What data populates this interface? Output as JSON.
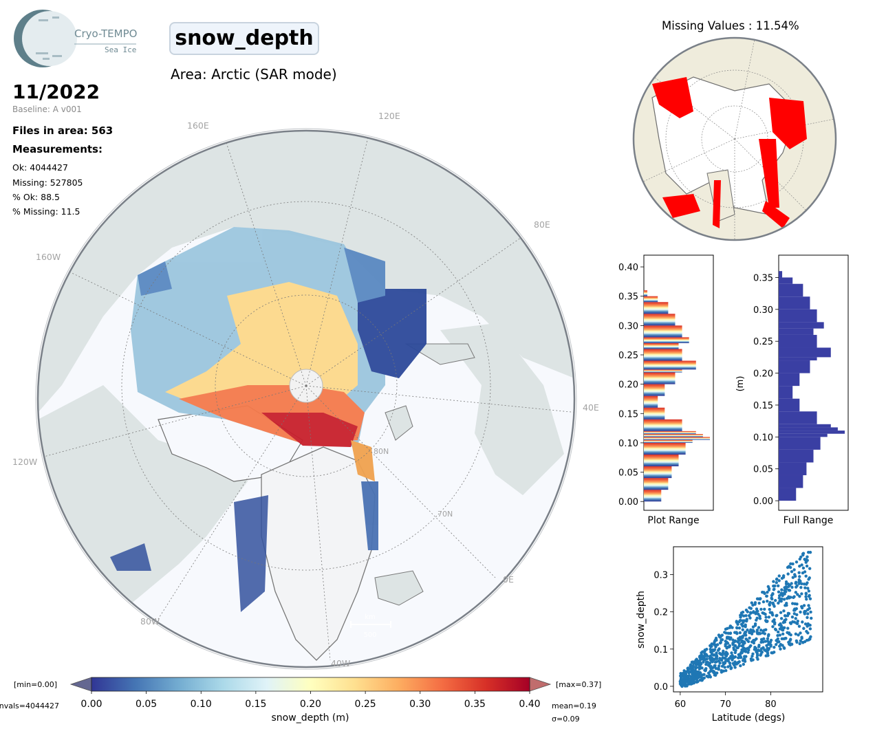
{
  "header": {
    "logo": {
      "brand": "Cryo-TEMPO",
      "sub": "Sea Ice"
    },
    "variable": "snow_depth",
    "area": "Area: Arctic (SAR mode)"
  },
  "info": {
    "date": "11/2022",
    "baseline": "Baseline: A v001",
    "files": "Files in area: 563",
    "measurements_title": "Measurements:",
    "ok": "Ok: 4044427",
    "missing": "Missing: 527805",
    "pct_ok": "% Ok: 88.5",
    "pct_missing": "% Missing: 11.5"
  },
  "map": {
    "lon_labels": {
      "l160e": "160E",
      "l120e": "120E",
      "l80e": "80E",
      "l40e": "40E",
      "l0e": "0E",
      "l40w": "40W",
      "l80w": "80W",
      "l120w": "120W",
      "l160w": "160W"
    },
    "lat_labels": {
      "l80n": "80N",
      "l70n": "70N"
    },
    "scale_label": "km",
    "scale_value": "500",
    "colors": {
      "land": "#dfe6e7",
      "ocean": "#f7f9fd",
      "coast": "#6d6d6d"
    }
  },
  "colorbar": {
    "label": "snow_depth (m)",
    "ticks": [
      "0.00",
      "0.05",
      "0.10",
      "0.15",
      "0.20",
      "0.25",
      "0.30",
      "0.35",
      "0.40"
    ],
    "min_label": "[min=0.00]",
    "max_label": "[max=0.37]",
    "nvals": "nvals=4044427",
    "mean": "mean=0.19",
    "sigma": "σ=0.09",
    "colormap": "RdYlBu_r",
    "range": [
      0.0,
      0.4
    ]
  },
  "missing_panel": {
    "title": "Missing Values : 11.54%",
    "missing_color": "#ff0000",
    "land_color": "#efecdc"
  },
  "chart_data": [
    {
      "type": "bar",
      "orientation": "horizontal",
      "xlabel": "Plot Range",
      "yticks": [
        "0.00",
        "0.05",
        "0.10",
        "0.15",
        "0.20",
        "0.25",
        "0.30",
        "0.35",
        "0.40"
      ],
      "ylim": [
        -0.015,
        0.42
      ],
      "bins": [
        0.0,
        0.02,
        0.04,
        0.06,
        0.08,
        0.1,
        0.105,
        0.11,
        0.115,
        0.12,
        0.14,
        0.16,
        0.18,
        0.2,
        0.22,
        0.225,
        0.24,
        0.26,
        0.27,
        0.28,
        0.3,
        0.32,
        0.34,
        0.35
      ],
      "counts": [
        0.25,
        0.35,
        0.4,
        0.5,
        0.6,
        0.7,
        0.95,
        0.85,
        0.75,
        0.55,
        0.3,
        0.2,
        0.3,
        0.45,
        0.55,
        0.75,
        0.55,
        0.5,
        0.65,
        0.55,
        0.45,
        0.35,
        0.2,
        0.05
      ]
    },
    {
      "type": "bar",
      "orientation": "horizontal",
      "xlabel": "Full Range",
      "ylabel": "(m)",
      "yticks": [
        "0.00",
        "0.05",
        "0.10",
        "0.15",
        "0.20",
        "0.25",
        "0.30",
        "0.35"
      ],
      "ylim": [
        -0.015,
        0.385
      ],
      "bins": [
        0.0,
        0.02,
        0.04,
        0.06,
        0.08,
        0.1,
        0.105,
        0.11,
        0.115,
        0.12,
        0.14,
        0.16,
        0.18,
        0.2,
        0.22,
        0.225,
        0.24,
        0.26,
        0.27,
        0.28,
        0.3,
        0.32,
        0.34,
        0.35
      ],
      "counts": [
        0.25,
        0.35,
        0.4,
        0.5,
        0.6,
        0.7,
        0.95,
        0.85,
        0.75,
        0.55,
        0.3,
        0.2,
        0.3,
        0.45,
        0.55,
        0.75,
        0.55,
        0.5,
        0.65,
        0.55,
        0.45,
        0.35,
        0.2,
        0.05
      ]
    },
    {
      "type": "scatter",
      "xlabel": "Latitude (degs)",
      "ylabel": "snow_depth",
      "xticks": [
        "60",
        "70",
        "80"
      ],
      "yticks": [
        "0.0",
        "0.1",
        "0.2",
        "0.3"
      ],
      "xlim": [
        58.5,
        91.5
      ],
      "ylim": [
        -0.015,
        0.375
      ],
      "color": "#1f77b4"
    }
  ]
}
